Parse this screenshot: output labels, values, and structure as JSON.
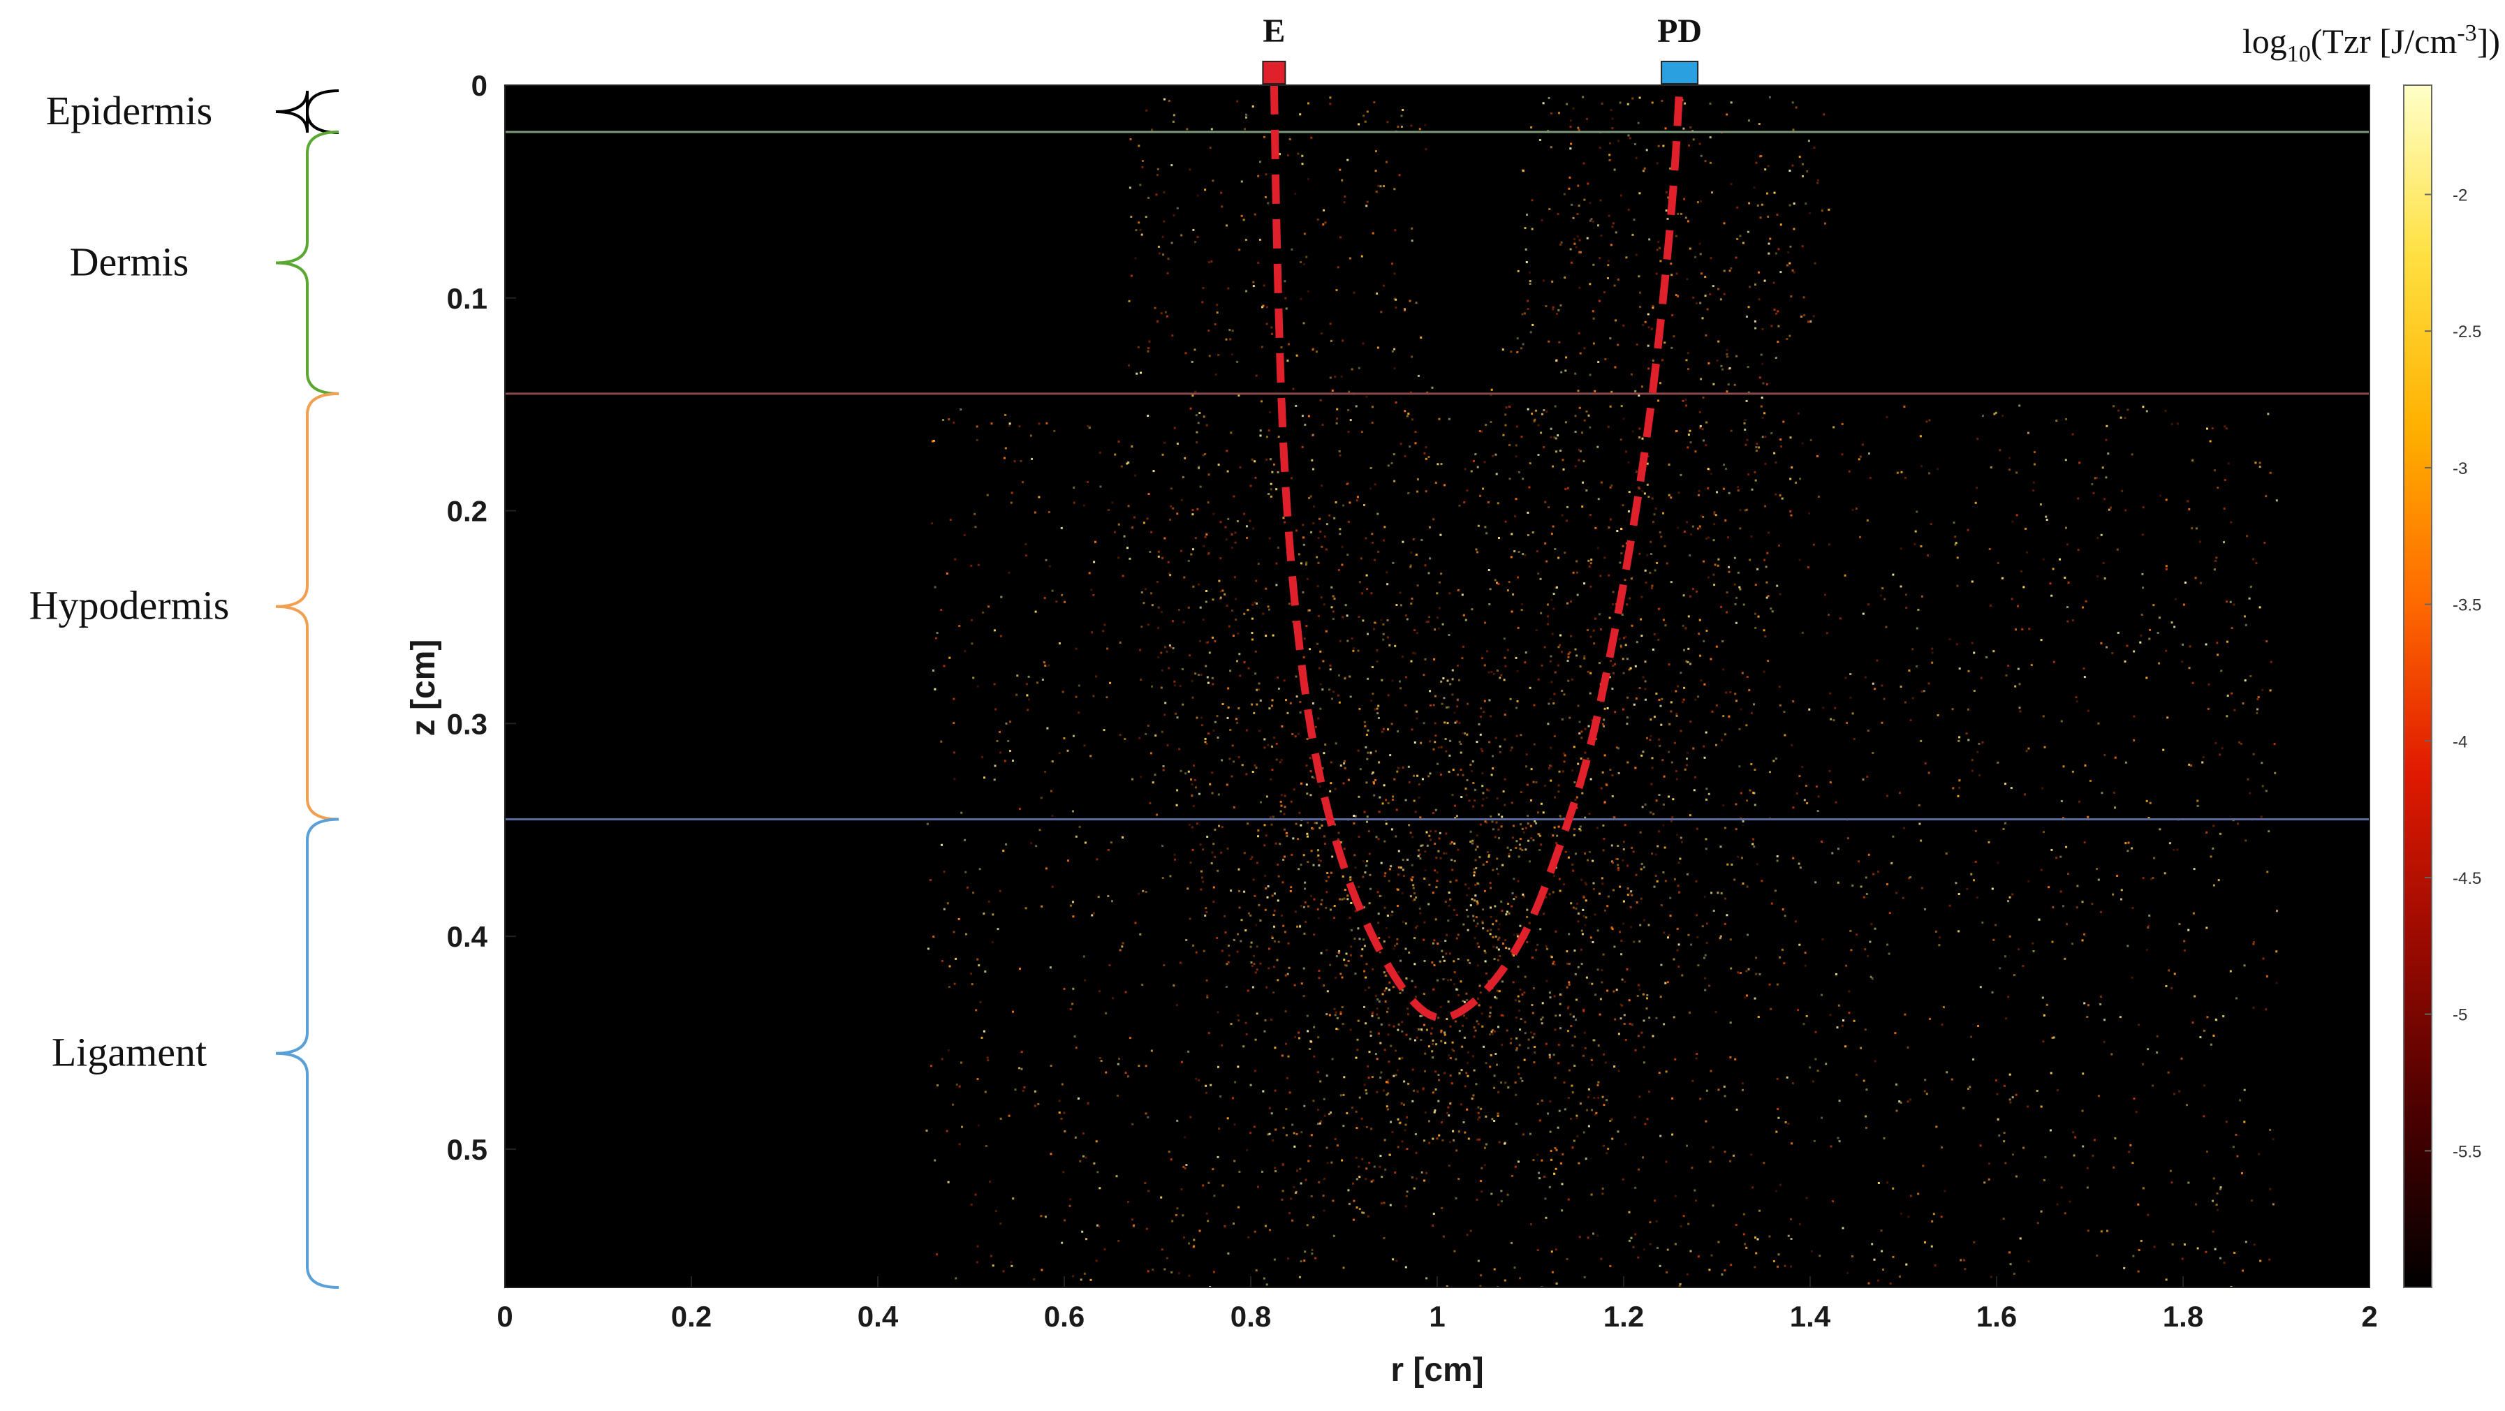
{
  "chart_data": {
    "type": "heatmap",
    "title": "",
    "xlabel": "r [cm]",
    "ylabel": "z [cm]",
    "xlim": [
      0,
      2
    ],
    "ylim": [
      0,
      0.565
    ],
    "y_inverted": true,
    "x_ticks": [
      "0",
      "0.2",
      "0.4",
      "0.6",
      "0.8",
      "1",
      "1.2",
      "1.4",
      "1.6",
      "1.8",
      "2"
    ],
    "x_tick_values": [
      0,
      0.2,
      0.4,
      0.6,
      0.8,
      1.0,
      1.2,
      1.4,
      1.6,
      1.8,
      2.0
    ],
    "y_ticks": [
      "0",
      "0.1",
      "0.2",
      "0.3",
      "0.4",
      "0.5"
    ],
    "y_tick_values": [
      0,
      0.1,
      0.2,
      0.3,
      0.4,
      0.5
    ],
    "colorbar": {
      "label_prefix": "log",
      "label_sub": "10",
      "label_main": "(Tzr [J/cm",
      "label_sup": "-3",
      "label_suffix": "])",
      "range": [
        -6,
        -1.6
      ],
      "ticks": [
        "-2",
        "-2.5",
        "-3",
        "-3.5",
        "-4",
        "-4.5",
        "-5",
        "-5.5"
      ],
      "tick_values": [
        -2,
        -2.5,
        -3,
        -3.5,
        -4,
        -4.5,
        -5,
        -5.5
      ],
      "colormap": [
        "#000000",
        "#4a0000",
        "#9a0a00",
        "#e01a00",
        "#ff6a00",
        "#ffb000",
        "#ffe040",
        "#ffffc8"
      ]
    },
    "layers": [
      {
        "name": "Epidermis",
        "z_top": 0,
        "z_bottom": 0.022,
        "bracket_color": "#000000",
        "boundary_color": "#7a9a7a"
      },
      {
        "name": "Dermis",
        "z_top": 0.022,
        "z_bottom": 0.145,
        "bracket_color": "#5aa832",
        "boundary_color": "#8a4a4a"
      },
      {
        "name": "Hypodermis",
        "z_top": 0.145,
        "z_bottom": 0.345,
        "bracket_color": "#f0a050",
        "boundary_color": "#5a6a9a"
      },
      {
        "name": "Ligament",
        "z_top": 0.345,
        "z_bottom": 0.565,
        "bracket_color": "#5aa0d8",
        "boundary_color": ""
      }
    ],
    "markers": [
      {
        "label": "E",
        "r": 0.825,
        "color": "#e0202a"
      },
      {
        "label": "PD",
        "r": 1.26,
        "color": "#2aa0e0"
      }
    ],
    "banana_path": {
      "color": "#e0202a",
      "style": "dashed",
      "r": [
        0.825,
        0.828,
        0.835,
        0.85,
        0.87,
        0.9,
        0.935,
        0.97,
        1.0,
        1.03,
        1.065,
        1.1,
        1.13,
        1.16,
        1.185,
        1.21,
        1.23,
        1.245,
        1.255,
        1.26
      ],
      "z": [
        0.0,
        0.08,
        0.18,
        0.26,
        0.32,
        0.37,
        0.405,
        0.43,
        0.44,
        0.435,
        0.42,
        0.395,
        0.36,
        0.32,
        0.27,
        0.21,
        0.15,
        0.09,
        0.04,
        0.0
      ]
    }
  }
}
